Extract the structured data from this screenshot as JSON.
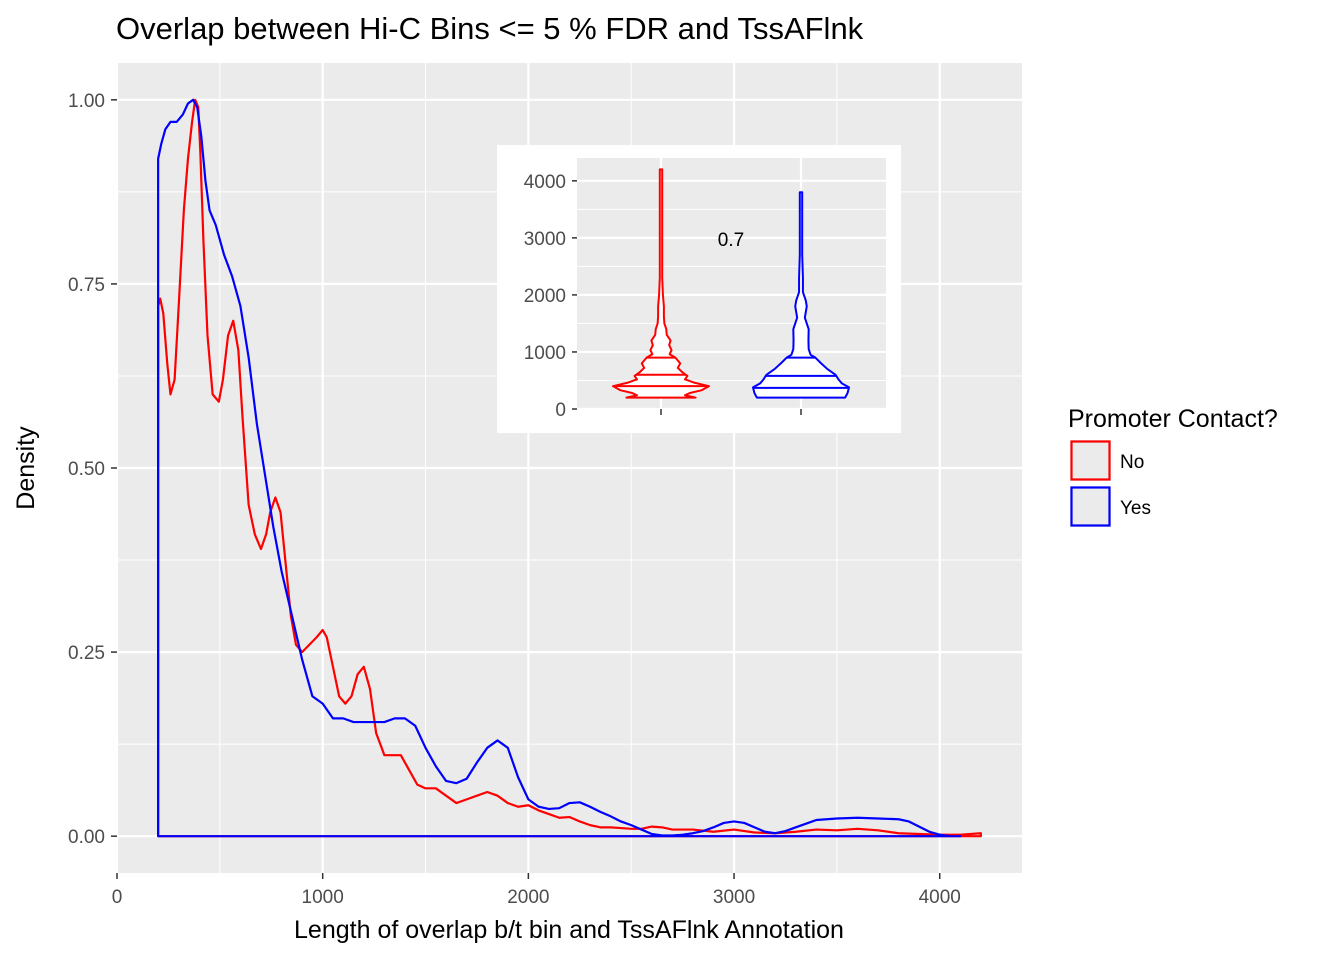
{
  "chart_data": [
    {
      "type": "area",
      "title": "Overlap between Hi-C Bins <= 5 % FDR and TssAFlnk",
      "xlabel": "Length of overlap b/t bin and TssAFlnk Annotation",
      "ylabel": "Density",
      "xlim": [
        0,
        4400
      ],
      "ylim": [
        -0.05,
        1.05
      ],
      "xticks": [
        0,
        1000,
        2000,
        3000,
        4000
      ],
      "xtick_labels": [
        "0",
        "1000",
        "2000",
        "3000",
        "4000"
      ],
      "yticks": [
        0,
        0.25,
        0.5,
        0.75,
        1.0
      ],
      "ytick_labels": [
        "0.00",
        "0.25",
        "0.50",
        "0.75",
        "1.00"
      ],
      "grid": true,
      "legend": {
        "title": "Promoter Contact?",
        "position": "right",
        "entries": [
          {
            "label": "No",
            "color": "#ff0000"
          },
          {
            "label": "Yes",
            "color": "#0000ff"
          }
        ]
      },
      "series": [
        {
          "name": "No",
          "color": "#ff0000",
          "x": [
            200,
            210,
            225,
            245,
            260,
            280,
            300,
            325,
            345,
            365,
            380,
            395,
            405,
            420,
            440,
            465,
            495,
            515,
            540,
            565,
            590,
            610,
            640,
            670,
            700,
            725,
            745,
            770,
            795,
            820,
            845,
            870,
            900,
            935,
            970,
            1000,
            1020,
            1050,
            1080,
            1110,
            1140,
            1170,
            1200,
            1230,
            1260,
            1300,
            1340,
            1380,
            1420,
            1460,
            1500,
            1550,
            1600,
            1650,
            1700,
            1750,
            1800,
            1850,
            1900,
            1950,
            2000,
            2050,
            2100,
            2150,
            2200,
            2250,
            2300,
            2350,
            2400,
            2450,
            2500,
            2550,
            2600,
            2650,
            2700,
            2800,
            2900,
            3000,
            3100,
            3200,
            3300,
            3400,
            3500,
            3600,
            3700,
            3800,
            3900,
            4000,
            4100,
            4200
          ],
          "y": [
            0.72,
            0.73,
            0.71,
            0.64,
            0.6,
            0.62,
            0.72,
            0.85,
            0.92,
            0.97,
            1.0,
            0.99,
            0.93,
            0.81,
            0.68,
            0.6,
            0.59,
            0.62,
            0.68,
            0.7,
            0.66,
            0.57,
            0.45,
            0.41,
            0.39,
            0.41,
            0.44,
            0.46,
            0.44,
            0.37,
            0.3,
            0.26,
            0.25,
            0.26,
            0.27,
            0.28,
            0.27,
            0.23,
            0.19,
            0.18,
            0.19,
            0.22,
            0.23,
            0.2,
            0.14,
            0.11,
            0.11,
            0.11,
            0.09,
            0.07,
            0.065,
            0.065,
            0.055,
            0.045,
            0.05,
            0.055,
            0.06,
            0.055,
            0.045,
            0.04,
            0.042,
            0.035,
            0.03,
            0.025,
            0.026,
            0.02,
            0.015,
            0.012,
            0.012,
            0.011,
            0.01,
            0.01,
            0.013,
            0.012,
            0.009,
            0.009,
            0.006,
            0.009,
            0.005,
            0.004,
            0.006,
            0.009,
            0.008,
            0.01,
            0.008,
            0.004,
            0.003,
            0.002,
            0.002,
            0.004
          ]
        },
        {
          "name": "Yes",
          "color": "#0000ff",
          "x": [
            200,
            215,
            235,
            260,
            290,
            320,
            345,
            370,
            390,
            410,
            430,
            450,
            480,
            520,
            560,
            600,
            640,
            680,
            720,
            760,
            800,
            850,
            900,
            950,
            1000,
            1050,
            1100,
            1150,
            1200,
            1250,
            1300,
            1350,
            1400,
            1450,
            1500,
            1550,
            1600,
            1650,
            1700,
            1750,
            1800,
            1850,
            1900,
            1950,
            2000,
            2050,
            2100,
            2150,
            2200,
            2250,
            2300,
            2350,
            2400,
            2450,
            2500,
            2550,
            2600,
            2650,
            2700,
            2750,
            2800,
            2850,
            2900,
            2950,
            3000,
            3050,
            3100,
            3150,
            3200,
            3250,
            3300,
            3350,
            3400,
            3500,
            3600,
            3700,
            3800,
            3850,
            3900,
            3950,
            4000,
            4050,
            4100
          ],
          "y": [
            0.92,
            0.94,
            0.96,
            0.97,
            0.97,
            0.98,
            0.995,
            1.0,
            0.99,
            0.95,
            0.89,
            0.85,
            0.83,
            0.79,
            0.76,
            0.72,
            0.65,
            0.56,
            0.49,
            0.42,
            0.36,
            0.3,
            0.24,
            0.19,
            0.18,
            0.16,
            0.16,
            0.155,
            0.155,
            0.155,
            0.155,
            0.16,
            0.16,
            0.15,
            0.12,
            0.095,
            0.075,
            0.072,
            0.078,
            0.1,
            0.12,
            0.13,
            0.12,
            0.08,
            0.05,
            0.04,
            0.037,
            0.038,
            0.045,
            0.046,
            0.04,
            0.033,
            0.027,
            0.02,
            0.015,
            0.009,
            0.003,
            0.001,
            0.001,
            0.002,
            0.004,
            0.007,
            0.012,
            0.018,
            0.02,
            0.018,
            0.012,
            0.006,
            0.004,
            0.007,
            0.012,
            0.017,
            0.022,
            0.024,
            0.025,
            0.024,
            0.023,
            0.02,
            0.013,
            0.006,
            0.002,
            0.0,
            0.0
          ]
        }
      ]
    },
    {
      "type": "violin",
      "annotation": "0.7",
      "ylim": [
        0,
        4400
      ],
      "yticks": [
        0,
        1000,
        2000,
        3000,
        4000
      ],
      "ytick_labels": [
        "0",
        "1000",
        "2000",
        "3000",
        "4000"
      ],
      "grid": true,
      "categories": [
        "No",
        "Yes"
      ],
      "series": [
        {
          "name": "No",
          "color": "#ff0000",
          "profile": [
            [
              200,
              0.72
            ],
            [
              240,
              0.5
            ],
            [
              280,
              0.6
            ],
            [
              330,
              0.85
            ],
            [
              400,
              1.0
            ],
            [
              460,
              0.7
            ],
            [
              520,
              0.5
            ],
            [
              580,
              0.55
            ],
            [
              640,
              0.45
            ],
            [
              720,
              0.35
            ],
            [
              800,
              0.4
            ],
            [
              900,
              0.3
            ],
            [
              960,
              0.18
            ],
            [
              1030,
              0.22
            ],
            [
              1120,
              0.17
            ],
            [
              1200,
              0.2
            ],
            [
              1300,
              0.12
            ],
            [
              1400,
              0.11
            ],
            [
              1500,
              0.07
            ],
            [
              1620,
              0.06
            ],
            [
              1800,
              0.06
            ],
            [
              2000,
              0.04
            ],
            [
              2300,
              0.025
            ],
            [
              2700,
              0.015
            ],
            [
              3200,
              0.01
            ],
            [
              3700,
              0.01
            ],
            [
              4200,
              0.008
            ]
          ],
          "lines": [
            400,
            600,
            900
          ]
        },
        {
          "name": "Yes",
          "color": "#0000ff",
          "profile": [
            [
              200,
              0.92
            ],
            [
              280,
              0.97
            ],
            [
              380,
              1.0
            ],
            [
              450,
              0.85
            ],
            [
              520,
              0.78
            ],
            [
              600,
              0.72
            ],
            [
              700,
              0.55
            ],
            [
              800,
              0.42
            ],
            [
              900,
              0.3
            ],
            [
              950,
              0.2
            ],
            [
              1050,
              0.16
            ],
            [
              1200,
              0.155
            ],
            [
              1400,
              0.16
            ],
            [
              1600,
              0.08
            ],
            [
              1800,
              0.12
            ],
            [
              1900,
              0.1
            ],
            [
              2050,
              0.04
            ],
            [
              2300,
              0.04
            ],
            [
              2700,
              0.01
            ],
            [
              3000,
              0.02
            ],
            [
              3200,
              0.02
            ],
            [
              3500,
              0.025
            ],
            [
              3800,
              0.024
            ]
          ],
          "lines": [
            370,
            580,
            900
          ]
        }
      ]
    }
  ]
}
